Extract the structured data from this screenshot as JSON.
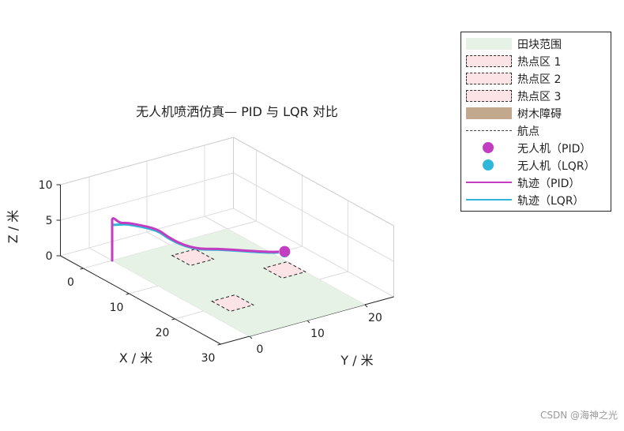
{
  "chart_data": {
    "type": "line",
    "projection": "3d",
    "title": "无人机喷洒仿真— PID 与 LQR 对比",
    "xlabel": "X / 米",
    "ylabel": "Y / 米",
    "zlabel": "Z / 米",
    "xlim": [
      -5,
      30
    ],
    "ylim": [
      -5,
      25
    ],
    "zlim": [
      0,
      10
    ],
    "xticks": [
      "0",
      "10",
      "20",
      "30"
    ],
    "yticks": [
      "0",
      "10",
      "20"
    ],
    "zticks": [
      "0",
      "5",
      "10"
    ],
    "grid": true,
    "legend_position": "outside-right",
    "field": {
      "name": "田块范围",
      "x": [
        0,
        30
      ],
      "y": [
        0,
        20
      ],
      "z": 0,
      "color": "#e6f2e6"
    },
    "hotspots": [
      {
        "name": "热点区 1",
        "x": [
          3,
          7
        ],
        "y": [
          8,
          12
        ],
        "color": "#fbe3e6"
      },
      {
        "name": "热点区 2",
        "x": [
          18,
          22
        ],
        "y": [
          3,
          7
        ],
        "color": "#fbe3e6"
      },
      {
        "name": "热点区 3",
        "x": [
          13,
          17
        ],
        "y": [
          16,
          20
        ],
        "color": "#fbe3e6"
      }
    ],
    "tree": {
      "name": "树木障碍",
      "color": "#c2a98e"
    },
    "waypoints_label": "航点",
    "series": [
      {
        "name": "轨迹（PID）",
        "color": "#c23dc0",
        "x": [
          0,
          0,
          0,
          1,
          2,
          4,
          5,
          5.5,
          6,
          6.5,
          7.5,
          9,
          11,
          14,
          15
        ],
        "y": [
          0,
          0,
          0,
          0.5,
          1,
          2,
          3,
          4,
          5,
          7,
          9,
          11,
          13,
          16,
          18
        ],
        "z": [
          0,
          5,
          6.2,
          5.5,
          5.8,
          5.9,
          5.7,
          5.2,
          4.3,
          3.0,
          2.3,
          2.4,
          2.5,
          2.6,
          2.6
        ]
      },
      {
        "name": "轨迹（LQR）",
        "color": "#2fb6d8",
        "x": [
          0,
          0,
          0,
          1,
          2,
          4,
          5,
          5.5,
          6,
          6.5,
          7.5,
          9,
          11,
          14,
          15
        ],
        "y": [
          0,
          0,
          0,
          0.5,
          1,
          2,
          3,
          4,
          5,
          7,
          9,
          11,
          13,
          16,
          18
        ],
        "z": [
          0,
          5,
          5.0,
          5.3,
          5.6,
          5.7,
          5.5,
          5.0,
          4.1,
          2.9,
          2.2,
          2.3,
          2.4,
          2.5,
          2.5
        ]
      }
    ],
    "markers": [
      {
        "name": "无人机（PID）",
        "color": "#c23dc0",
        "x": 15,
        "y": 18,
        "z": 2.6
      },
      {
        "name": "无人机（LQR）",
        "color": "#2fb6d8",
        "x": 15,
        "y": 18,
        "z": 2.5
      }
    ]
  },
  "legend": {
    "entries": [
      {
        "label": "田块范围",
        "kind": "rect",
        "fill": "#e6f2e6",
        "stroke": "none"
      },
      {
        "label": "热点区 1",
        "kind": "rect",
        "fill": "#fbe3e6",
        "stroke": "dashed"
      },
      {
        "label": "热点区 2",
        "kind": "rect",
        "fill": "#fbe3e6",
        "stroke": "dashed"
      },
      {
        "label": "热点区 3",
        "kind": "rect",
        "fill": "#fbe3e6",
        "stroke": "dashed"
      },
      {
        "label": "树木障碍",
        "kind": "rect",
        "fill": "#c2a98e",
        "stroke": "none"
      },
      {
        "label": "航点",
        "kind": "dashline",
        "color": "#444444"
      },
      {
        "label": "无人机（PID）",
        "kind": "dot",
        "color": "#c23dc0"
      },
      {
        "label": "无人机（LQR）",
        "kind": "dot",
        "color": "#2fb6d8"
      },
      {
        "label": "轨迹（PID）",
        "kind": "line",
        "color": "#c23dc0"
      },
      {
        "label": "轨迹（LQR）",
        "kind": "line",
        "color": "#2fb6d8"
      }
    ]
  },
  "watermark": "CSDN @海神之光"
}
